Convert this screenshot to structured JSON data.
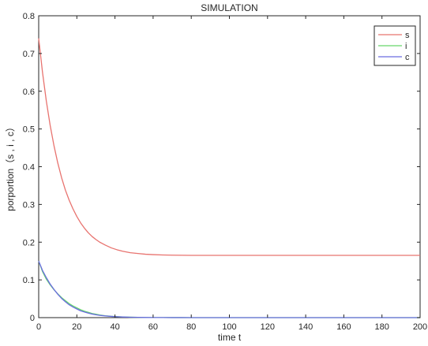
{
  "chart_data": {
    "type": "line",
    "title": "SIMULATION",
    "xlabel": "time t",
    "ylabel": "porportion（s , i , c）",
    "xlim": [
      0,
      200
    ],
    "ylim": [
      0,
      0.8
    ],
    "xticks": [
      0,
      20,
      40,
      60,
      80,
      100,
      120,
      140,
      160,
      180,
      200
    ],
    "yticks": [
      0,
      0.1,
      0.2,
      0.3,
      0.4,
      0.5,
      0.6,
      0.7,
      0.8
    ],
    "xtick_labels": [
      "0",
      "20",
      "40",
      "60",
      "80",
      "100",
      "120",
      "140",
      "160",
      "180",
      "200"
    ],
    "ytick_labels": [
      "0",
      "0.1",
      "0.2",
      "0.3",
      "0.4",
      "0.5",
      "0.6",
      "0.7",
      "0.8"
    ],
    "grid": false,
    "legend_position": "top-right",
    "x": [
      0,
      2,
      4,
      6,
      8,
      10,
      12,
      14,
      16,
      18,
      20,
      22,
      24,
      26,
      28,
      30,
      32,
      35,
      38,
      41,
      44,
      48,
      52,
      56,
      60,
      65,
      70,
      75,
      80,
      90,
      100,
      120,
      140,
      160,
      180,
      200
    ],
    "series": [
      {
        "name": "s",
        "color": "#e8736f",
        "values": [
          0.74,
          0.65,
          0.574,
          0.51,
          0.456,
          0.41,
          0.371,
          0.338,
          0.311,
          0.288,
          0.268,
          0.251,
          0.237,
          0.225,
          0.215,
          0.207,
          0.2,
          0.192,
          0.185,
          0.18,
          0.176,
          0.172,
          0.17,
          0.168,
          0.167,
          0.166,
          0.1655,
          0.1652,
          0.165,
          0.165,
          0.165,
          0.165,
          0.165,
          0.165,
          0.165,
          0.165
        ]
      },
      {
        "name": "i",
        "color": "#67d86b",
        "values": [
          0.15,
          0.122,
          0.102,
          0.087,
          0.074,
          0.063,
          0.053,
          0.045,
          0.037,
          0.031,
          0.026,
          0.021,
          0.017,
          0.014,
          0.011,
          0.009,
          0.007,
          0.005,
          0.0035,
          0.0025,
          0.0018,
          0.0012,
          0.0008,
          0.0005,
          0.0003,
          0.0002,
          0.0001,
          0.0001,
          0,
          0,
          0,
          0,
          0,
          0,
          0,
          0
        ]
      },
      {
        "name": "c",
        "color": "#6a6ce0",
        "values": [
          0.15,
          0.125,
          0.106,
          0.089,
          0.075,
          0.062,
          0.051,
          0.042,
          0.034,
          0.028,
          0.023,
          0.018,
          0.015,
          0.012,
          0.0095,
          0.0075,
          0.006,
          0.0045,
          0.0033,
          0.0024,
          0.0017,
          0.0011,
          0.0007,
          0.0004,
          0.0003,
          0.0002,
          0.0001,
          0.0001,
          0,
          0,
          0,
          0,
          0,
          0,
          0,
          0
        ]
      }
    ]
  }
}
